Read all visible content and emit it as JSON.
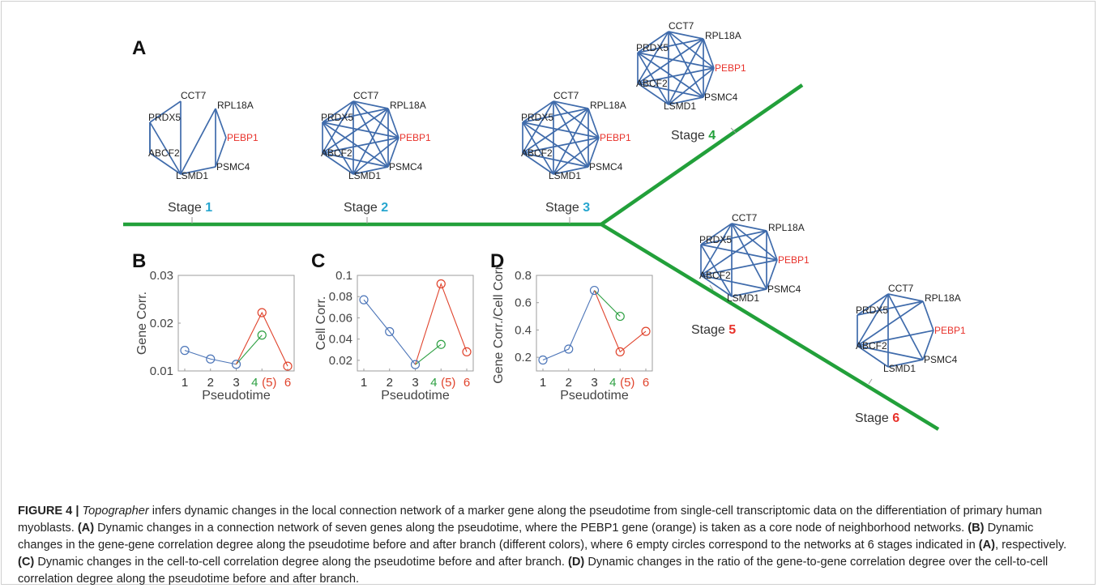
{
  "panel_labels": {
    "A": "A",
    "B": "B",
    "C": "C",
    "D": "D"
  },
  "gene_nodes": [
    "CCT7",
    "RPL18A",
    "PEBP1",
    "PSMC4",
    "LSMD1",
    "ABCF2",
    "PRDX5"
  ],
  "core_gene": "PEBP1",
  "colors": {
    "edge": "#3f6bab",
    "trajectory": "#22a03a",
    "core_gene": "#e8322b",
    "stage_before": "#27a6cf",
    "stage_branch_a": "#22a03a",
    "stage_branch_b": "#e8322b",
    "series_before": "#4c75b8",
    "series_branch_a": "#2ea043",
    "series_branch_b": "#e0432c"
  },
  "stages": [
    {
      "word": "Stage",
      "num": "1",
      "tone": "before",
      "edges": [
        [
          "CCT7",
          "PRDX5"
        ],
        [
          "CCT7",
          "LSMD1"
        ],
        [
          "PRDX5",
          "ABCF2"
        ],
        [
          "PRDX5",
          "LSMD1"
        ],
        [
          "ABCF2",
          "LSMD1"
        ],
        [
          "ABCF2",
          "PRDX5"
        ],
        [
          "RPL18A",
          "LSMD1"
        ],
        [
          "RPL18A",
          "PSMC4"
        ],
        [
          "RPL18A",
          "PEBP1"
        ],
        [
          "PEBP1",
          "PSMC4"
        ],
        [
          "LSMD1",
          "PSMC4"
        ]
      ]
    },
    {
      "word": "Stage",
      "num": "2",
      "tone": "before",
      "edges": "all"
    },
    {
      "word": "Stage",
      "num": "3",
      "tone": "before",
      "edges": "all"
    },
    {
      "word": "Stage",
      "num": "4",
      "tone": "branch_a",
      "edges": "all"
    },
    {
      "word": "Stage",
      "num": "5",
      "tone": "branch_b",
      "edges": [
        [
          "CCT7",
          "RPL18A"
        ],
        [
          "CCT7",
          "PRDX5"
        ],
        [
          "CCT7",
          "ABCF2"
        ],
        [
          "CCT7",
          "LSMD1"
        ],
        [
          "CCT7",
          "PSMC4"
        ],
        [
          "CCT7",
          "PEBP1"
        ],
        [
          "RPL18A",
          "PRDX5"
        ],
        [
          "RPL18A",
          "ABCF2"
        ],
        [
          "RPL18A",
          "PSMC4"
        ],
        [
          "RPL18A",
          "PEBP1"
        ],
        [
          "PEBP1",
          "PRDX5"
        ],
        [
          "PEBP1",
          "ABCF2"
        ],
        [
          "PEBP1",
          "PSMC4"
        ],
        [
          "PSMC4",
          "ABCF2"
        ],
        [
          "PSMC4",
          "LSMD1"
        ],
        [
          "LSMD1",
          "PRDX5"
        ],
        [
          "LSMD1",
          "ABCF2"
        ],
        [
          "ABCF2",
          "PRDX5"
        ]
      ]
    },
    {
      "word": "Stage",
      "num": "6",
      "tone": "branch_b",
      "edges": [
        [
          "CCT7",
          "RPL18A"
        ],
        [
          "CCT7",
          "PRDX5"
        ],
        [
          "CCT7",
          "ABCF2"
        ],
        [
          "CCT7",
          "LSMD1"
        ],
        [
          "CCT7",
          "PSMC4"
        ],
        [
          "RPL18A",
          "PEBP1"
        ],
        [
          "RPL18A",
          "ABCF2"
        ],
        [
          "RPL18A",
          "PRDX5"
        ],
        [
          "PEBP1",
          "PSMC4"
        ],
        [
          "PEBP1",
          "ABCF2"
        ],
        [
          "PSMC4",
          "LSMD1"
        ],
        [
          "PSMC4",
          "ABCF2"
        ],
        [
          "LSMD1",
          "ABCF2"
        ],
        [
          "ABCF2",
          "PRDX5"
        ]
      ]
    }
  ],
  "chart_data": [
    {
      "panel": "B",
      "type": "line",
      "xlabel": "Pseudotime",
      "ylabel": "Gene Corr.",
      "ylim": [
        0.01,
        0.03
      ],
      "yticks": [
        "0.01",
        "0.02",
        "0.03"
      ],
      "xticks": [
        {
          "text": "1",
          "tone": "axis"
        },
        {
          "text": "2",
          "tone": "axis"
        },
        {
          "text": "3",
          "tone": "axis"
        },
        {
          "text": "4",
          "tone": "branch_a"
        },
        {
          "text": "(5)",
          "tone": "branch_b"
        },
        {
          "text": "6",
          "tone": "branch_b"
        }
      ],
      "series": [
        {
          "tone": "before",
          "x": [
            1,
            2,
            3
          ],
          "y": [
            0.0143,
            0.0125,
            0.0114
          ]
        },
        {
          "tone": "branch_a",
          "x": [
            3,
            4
          ],
          "y": [
            0.0114,
            0.0175
          ]
        },
        {
          "tone": "branch_b",
          "x": [
            3,
            4,
            5
          ],
          "y": [
            0.0114,
            0.0222,
            0.011
          ]
        }
      ]
    },
    {
      "panel": "C",
      "type": "line",
      "xlabel": "Pseudotime",
      "ylabel": "Cell Corr.",
      "ylim": [
        0.01,
        0.1
      ],
      "yticks": [
        "0.02",
        "0.04",
        "0.06",
        "0.08",
        "0.1"
      ],
      "xticks": [
        {
          "text": "1",
          "tone": "axis"
        },
        {
          "text": "2",
          "tone": "axis"
        },
        {
          "text": "3",
          "tone": "axis"
        },
        {
          "text": "4",
          "tone": "branch_a"
        },
        {
          "text": "(5)",
          "tone": "branch_b"
        },
        {
          "text": "6",
          "tone": "branch_b"
        }
      ],
      "series": [
        {
          "tone": "before",
          "x": [
            1,
            2,
            3
          ],
          "y": [
            0.077,
            0.047,
            0.016
          ]
        },
        {
          "tone": "branch_a",
          "x": [
            3,
            4
          ],
          "y": [
            0.016,
            0.035
          ]
        },
        {
          "tone": "branch_b",
          "x": [
            3,
            4,
            5
          ],
          "y": [
            0.016,
            0.092,
            0.028
          ]
        }
      ]
    },
    {
      "panel": "D",
      "type": "line",
      "xlabel": "Pseudotime",
      "ylabel": "Gene Corr./Cell Corr.",
      "ylim": [
        0.1,
        0.8
      ],
      "yticks": [
        "0.2",
        "0.4",
        "0.6",
        "0.8"
      ],
      "xticks": [
        {
          "text": "1",
          "tone": "axis"
        },
        {
          "text": "2",
          "tone": "axis"
        },
        {
          "text": "3",
          "tone": "axis"
        },
        {
          "text": "4",
          "tone": "branch_a"
        },
        {
          "text": "(5)",
          "tone": "branch_b"
        },
        {
          "text": "6",
          "tone": "branch_b"
        }
      ],
      "series": [
        {
          "tone": "before",
          "x": [
            1,
            2,
            3
          ],
          "y": [
            0.18,
            0.26,
            0.69
          ]
        },
        {
          "tone": "branch_a",
          "x": [
            3,
            4
          ],
          "y": [
            0.69,
            0.5
          ]
        },
        {
          "tone": "branch_b",
          "x": [
            3,
            4,
            5
          ],
          "y": [
            0.69,
            0.24,
            0.39
          ]
        }
      ]
    }
  ],
  "caption": {
    "fig_label": "FIGURE 4 |",
    "tool": "Topographer",
    "part1": " infers dynamic changes in the local connection network of a marker gene along the pseudotime from single-cell transcriptomic data on the differentiation of primary human myoblasts. ",
    "ref_a": "(A)",
    "part2": " Dynamic changes in a connection network of seven genes along the pseudotime, where the PEBP1 gene (orange) is taken as a core node of neighborhood networks. ",
    "ref_b": "(B)",
    "part3": " Dynamic changes in the gene-gene correlation degree along the pseudotime before and after branch (different colors), where 6 empty circles correspond to the networks at 6 stages indicated in ",
    "ref_a2": "(A)",
    "part4": ", respectively. ",
    "ref_c": "(C)",
    "part5": " Dynamic changes in the cell-to-cell correlation degree along the pseudotime before and after branch. ",
    "ref_d": "(D)",
    "part6": " Dynamic changes in the ratio of the gene-to-gene correlation degree over the cell-to-cell correlation degree along the pseudotime before and after branch."
  }
}
